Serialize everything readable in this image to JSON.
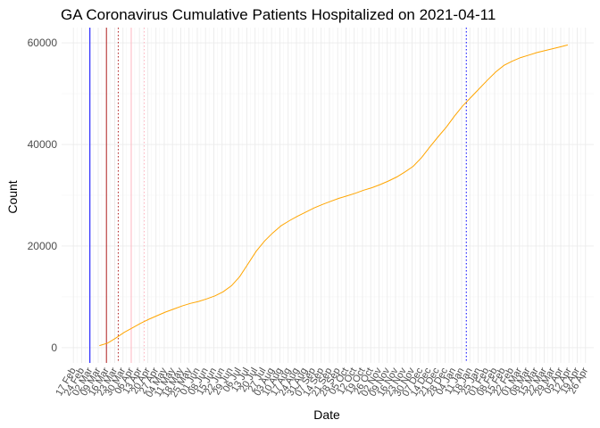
{
  "chart_data": {
    "type": "line",
    "title": "GA Coronavirus Cumulative Patients Hospitalized on 2021-04-11",
    "xlabel": "Date",
    "ylabel": "Count",
    "ylim": [
      -3000,
      63000
    ],
    "xlim": [
      "2020-02-07",
      "2021-05-03"
    ],
    "yticks": [
      0,
      20000,
      40000,
      60000
    ],
    "ytick_labels": [
      "0",
      "20000",
      "40000",
      "60000"
    ],
    "xtick_labels": [
      "17 Feb",
      "24 Feb",
      "02 Mar",
      "09 Mar",
      "16 Mar",
      "23 Mar",
      "30 Mar",
      "06 Apr",
      "13 Apr",
      "20 Apr",
      "27 Apr",
      "04 May",
      "11 May",
      "18 May",
      "25 May",
      "01 Jun",
      "08 Jun",
      "15 Jun",
      "22 Jun",
      "29 Jun",
      "06 Jul",
      "13 Jul",
      "20 Jul",
      "27 Jul",
      "03 Aug",
      "10 Aug",
      "17 Aug",
      "24 Aug",
      "31 Aug",
      "07 Sep",
      "14 Sep",
      "21 Sep",
      "28 Sep",
      "05 Oct",
      "12 Oct",
      "19 Oct",
      "26 Oct",
      "02 Nov",
      "09 Nov",
      "16 Nov",
      "23 Nov",
      "30 Nov",
      "07 Dec",
      "14 Dec",
      "21 Dec",
      "28 Dec",
      "04 Jan",
      "11 Jan",
      "18 Jan",
      "25 Jan",
      "01 Feb",
      "08 Feb",
      "15 Feb",
      "22 Feb",
      "01 Mar",
      "08 Mar",
      "15 Mar",
      "22 Mar",
      "29 Mar",
      "05 Apr",
      "12 Apr",
      "19 Apr",
      "26 Apr"
    ],
    "xtick_dates": [
      "2020-02-17",
      "2020-02-24",
      "2020-03-02",
      "2020-03-09",
      "2020-03-16",
      "2020-03-23",
      "2020-03-30",
      "2020-04-06",
      "2020-04-13",
      "2020-04-20",
      "2020-04-27",
      "2020-05-04",
      "2020-05-11",
      "2020-05-18",
      "2020-05-25",
      "2020-06-01",
      "2020-06-08",
      "2020-06-15",
      "2020-06-22",
      "2020-06-29",
      "2020-07-06",
      "2020-07-13",
      "2020-07-20",
      "2020-07-27",
      "2020-08-03",
      "2020-08-10",
      "2020-08-17",
      "2020-08-24",
      "2020-08-31",
      "2020-09-07",
      "2020-09-14",
      "2020-09-21",
      "2020-09-28",
      "2020-10-05",
      "2020-10-12",
      "2020-10-19",
      "2020-10-26",
      "2020-11-02",
      "2020-11-09",
      "2020-11-16",
      "2020-11-23",
      "2020-11-30",
      "2020-12-07",
      "2020-12-14",
      "2020-12-21",
      "2020-12-28",
      "2021-01-04",
      "2021-01-11",
      "2021-01-18",
      "2021-01-25",
      "2021-02-01",
      "2021-02-08",
      "2021-02-15",
      "2021-02-22",
      "2021-03-01",
      "2021-03-08",
      "2021-03-15",
      "2021-03-22",
      "2021-03-29",
      "2021-04-05",
      "2021-04-12",
      "2021-04-19",
      "2021-04-26"
    ],
    "grid": true,
    "vlines": [
      {
        "date": "2020-03-02",
        "color": "#0000ff",
        "style": "solid"
      },
      {
        "date": "2020-03-16",
        "color": "#b22222",
        "style": "solid"
      },
      {
        "date": "2020-03-26",
        "color": "#b22222",
        "style": "dotted"
      },
      {
        "date": "2020-04-06",
        "color": "#ffb6c1",
        "style": "solid"
      },
      {
        "date": "2020-04-17",
        "color": "#ffb6c1",
        "style": "dotted"
      },
      {
        "date": "2021-01-15",
        "color": "#0000ff",
        "style": "dotted"
      }
    ],
    "series": [
      {
        "color": "#ffa500",
        "x": [
          "2020-03-10",
          "2020-03-17",
          "2020-03-24",
          "2020-03-31",
          "2020-04-07",
          "2020-04-14",
          "2020-04-21",
          "2020-04-28",
          "2020-05-05",
          "2020-05-12",
          "2020-05-19",
          "2020-05-26",
          "2020-06-02",
          "2020-06-09",
          "2020-06-16",
          "2020-06-23",
          "2020-06-30",
          "2020-07-07",
          "2020-07-14",
          "2020-07-21",
          "2020-07-28",
          "2020-08-04",
          "2020-08-11",
          "2020-08-18",
          "2020-08-25",
          "2020-09-01",
          "2020-09-08",
          "2020-09-15",
          "2020-09-22",
          "2020-09-29",
          "2020-10-06",
          "2020-10-13",
          "2020-10-20",
          "2020-10-27",
          "2020-11-03",
          "2020-11-10",
          "2020-11-17",
          "2020-11-24",
          "2020-12-01",
          "2020-12-08",
          "2020-12-15",
          "2020-12-22",
          "2020-12-29",
          "2021-01-05",
          "2021-01-12",
          "2021-01-19",
          "2021-01-26",
          "2021-02-02",
          "2021-02-09",
          "2021-02-16",
          "2021-02-23",
          "2021-03-02",
          "2021-03-09",
          "2021-03-16",
          "2021-03-23",
          "2021-03-30",
          "2021-04-06",
          "2021-04-11"
        ],
        "y": [
          400,
          900,
          1900,
          3000,
          3900,
          4800,
          5600,
          6300,
          7000,
          7600,
          8200,
          8700,
          9100,
          9600,
          10200,
          11000,
          12200,
          14000,
          16500,
          19000,
          21000,
          22600,
          24000,
          25000,
          25900,
          26700,
          27500,
          28200,
          28800,
          29400,
          29900,
          30400,
          31000,
          31500,
          32100,
          32800,
          33600,
          34600,
          35700,
          37400,
          39500,
          41500,
          43400,
          45600,
          47600,
          49300,
          51000,
          52700,
          54300,
          55600,
          56400,
          57100,
          57600,
          58100,
          58500,
          58900,
          59300,
          59600
        ]
      }
    ]
  }
}
